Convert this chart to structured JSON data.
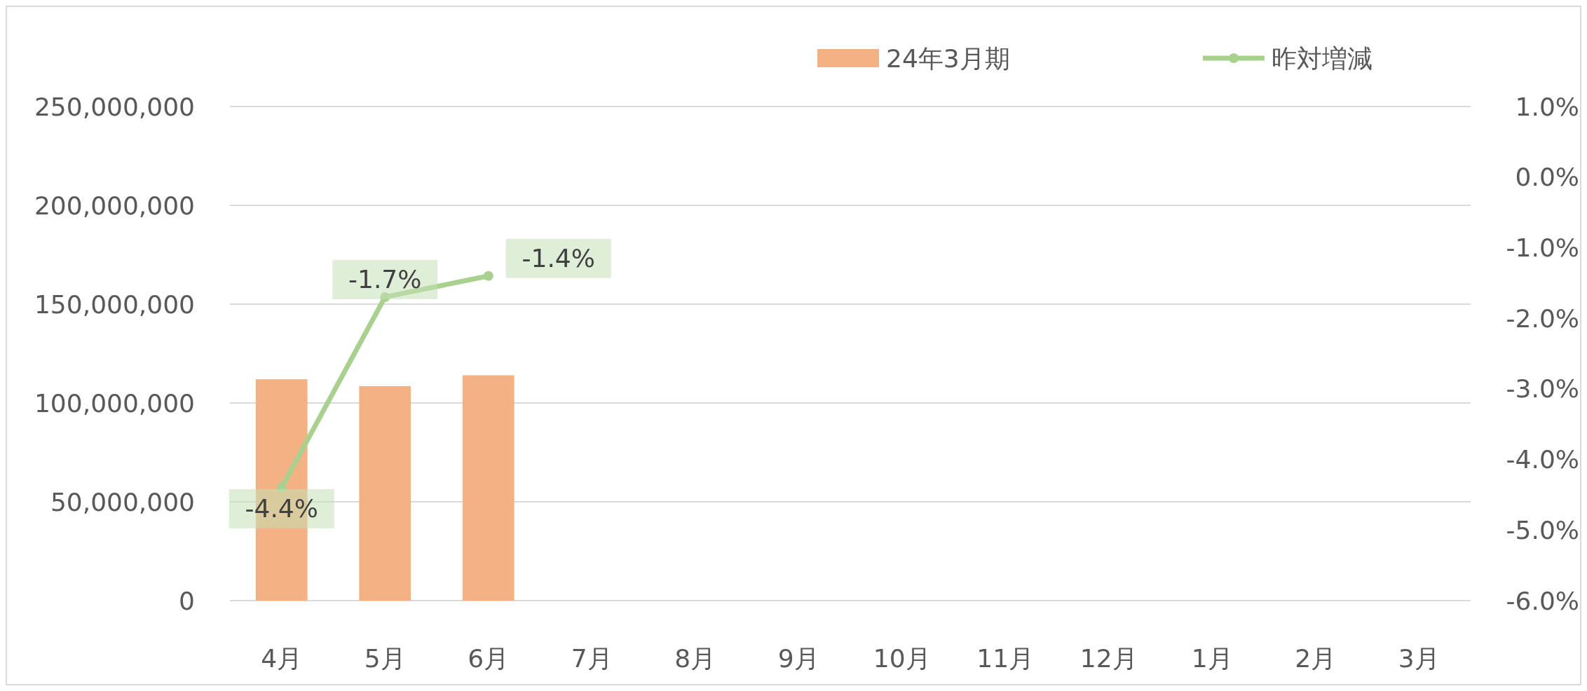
{
  "chart_data": {
    "type": "bar",
    "categories": [
      "4月",
      "5月",
      "6月",
      "7月",
      "8月",
      "9月",
      "10月",
      "11月",
      "12月",
      "1月",
      "2月",
      "3月"
    ],
    "series": [
      {
        "name": "24年3月期",
        "color": "#f4b183",
        "values": [
          112000000,
          108500000,
          114000000,
          null,
          null,
          null,
          null,
          null,
          null,
          null,
          null,
          null
        ]
      },
      {
        "name": "昨対増減",
        "type": "line",
        "axis": "y2",
        "color": "#a9d18e",
        "marker": "circle",
        "values": [
          -4.4,
          -1.7,
          -1.4,
          null,
          null,
          null,
          null,
          null,
          null,
          null,
          null,
          null
        ],
        "value_labels": [
          "-4.4%",
          "-1.7%",
          "-1.4%",
          null,
          null,
          null,
          null,
          null,
          null,
          null,
          null,
          null
        ]
      }
    ],
    "ylim": [
      0,
      250000000
    ],
    "yticks": [
      {
        "value": 0,
        "label": "0"
      },
      {
        "value": 50000000,
        "label": "50,000,000"
      },
      {
        "value": 100000000,
        "label": "100,000,000"
      },
      {
        "value": 150000000,
        "label": "150,000,000"
      },
      {
        "value": 200000000,
        "label": "200,000,000"
      },
      {
        "value": 250000000,
        "label": "250,000,000"
      }
    ],
    "y2lim": [
      -6,
      1
    ],
    "y2ticks": [
      {
        "value": -6,
        "label": "-6.0%"
      },
      {
        "value": -5,
        "label": "-5.0%"
      },
      {
        "value": -4,
        "label": "-4.0%"
      },
      {
        "value": -3,
        "label": "-3.0%"
      },
      {
        "value": -2,
        "label": "-2.0%"
      },
      {
        "value": -1,
        "label": "-1.0%"
      },
      {
        "value": 0,
        "label": "0.0%"
      },
      {
        "value": 1,
        "label": "1.0%"
      }
    ],
    "grid": "y",
    "legend": "top right"
  }
}
